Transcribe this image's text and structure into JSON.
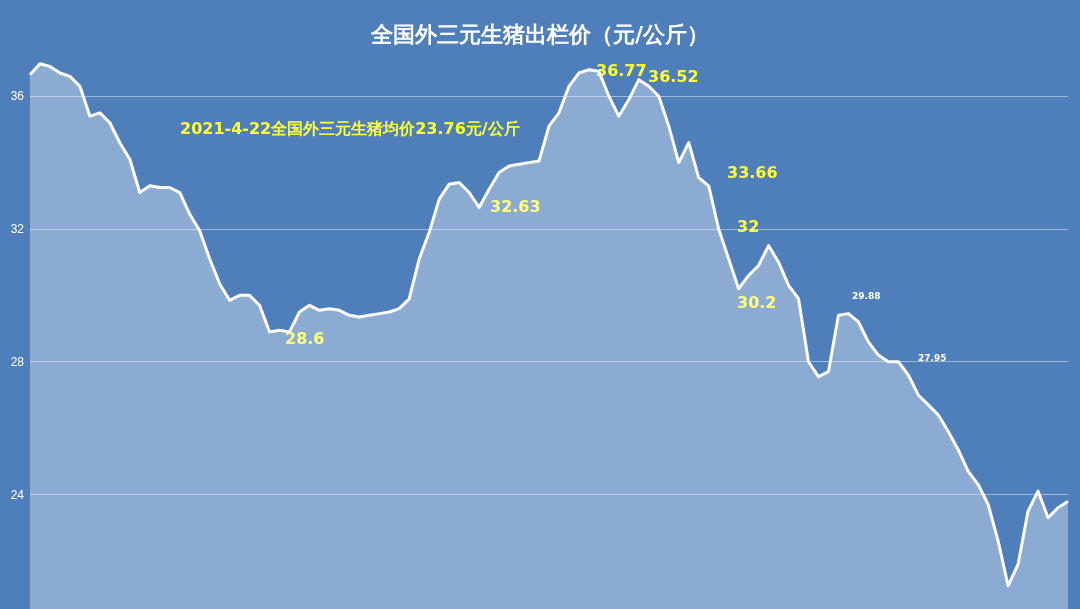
{
  "chart_data": {
    "type": "area",
    "title": "全国外三元生猪出栏价（元/公斤）",
    "categories": [
      null,
      null,
      null,
      null,
      null,
      null,
      null,
      null,
      null,
      null,
      null,
      null,
      null,
      null,
      null,
      null,
      null,
      null,
      null,
      null,
      null,
      null,
      null,
      null,
      null,
      null,
      null,
      null,
      null,
      null,
      null,
      null,
      null,
      null,
      null,
      null,
      null,
      null,
      null,
      null,
      null,
      null,
      null,
      null,
      null,
      null,
      null,
      null,
      null,
      null,
      null,
      null,
      null,
      null,
      null,
      null,
      null,
      null,
      null,
      null,
      null,
      null,
      null,
      null,
      null,
      null,
      null,
      null,
      null,
      null,
      null,
      null,
      null,
      null,
      null,
      null,
      null,
      null,
      null,
      null,
      null,
      null,
      null,
      null,
      null,
      null,
      null,
      null,
      null,
      null,
      null,
      null,
      null,
      null,
      null,
      null,
      null,
      null,
      null,
      null,
      null,
      null,
      null,
      null,
      null
    ],
    "series": [
      {
        "color": "#ffffff",
        "values": [
          36.65,
          36.98,
          36.9,
          36.7,
          36.6,
          36.3,
          35.4,
          35.5,
          35.2,
          34.6,
          34.1,
          33.1,
          33.3,
          33.25,
          33.25,
          33.1,
          32.45,
          31.95,
          31.1,
          30.35,
          29.85,
          30.0,
          30.0,
          29.7,
          28.9,
          28.95,
          28.9,
          29.5,
          29.7,
          29.55,
          29.6,
          29.55,
          29.4,
          29.35,
          29.4,
          29.45,
          29.5,
          29.6,
          29.9,
          31.1,
          31.9,
          32.9,
          33.35,
          33.4,
          33.1,
          32.65,
          33.2,
          33.7,
          33.9,
          33.95,
          34.0,
          34.05,
          35.1,
          35.5,
          36.3,
          36.7,
          36.8,
          36.75,
          36.0,
          35.4,
          35.9,
          36.5,
          36.3,
          36.0,
          35.1,
          34.0,
          34.6,
          33.55,
          33.3,
          32.0,
          31.1,
          30.2,
          30.6,
          30.9,
          31.5,
          31.0,
          30.3,
          29.9,
          28.0,
          27.55,
          27.7,
          29.4,
          29.45,
          29.2,
          28.6,
          28.2,
          28.0,
          28.0,
          27.6,
          27.0,
          26.7,
          26.4,
          25.9,
          25.35,
          24.7,
          24.3,
          23.7,
          22.6,
          21.25,
          21.9,
          23.5,
          24.1,
          23.3,
          23.6,
          23.8
        ]
      }
    ],
    "ylim": [
      20.55,
      38.9
    ],
    "yticks": [
      24,
      28,
      32,
      36
    ],
    "grid": "y",
    "marker": "none",
    "line_style": "solid",
    "annotations": [
      "2021-4-22全国外三元生猪均价23.76元/公斤",
      "36.77",
      "36.52",
      "32.63",
      "33.66",
      "32",
      "30.2",
      "28.6",
      "29.88",
      "27.95"
    ]
  }
}
